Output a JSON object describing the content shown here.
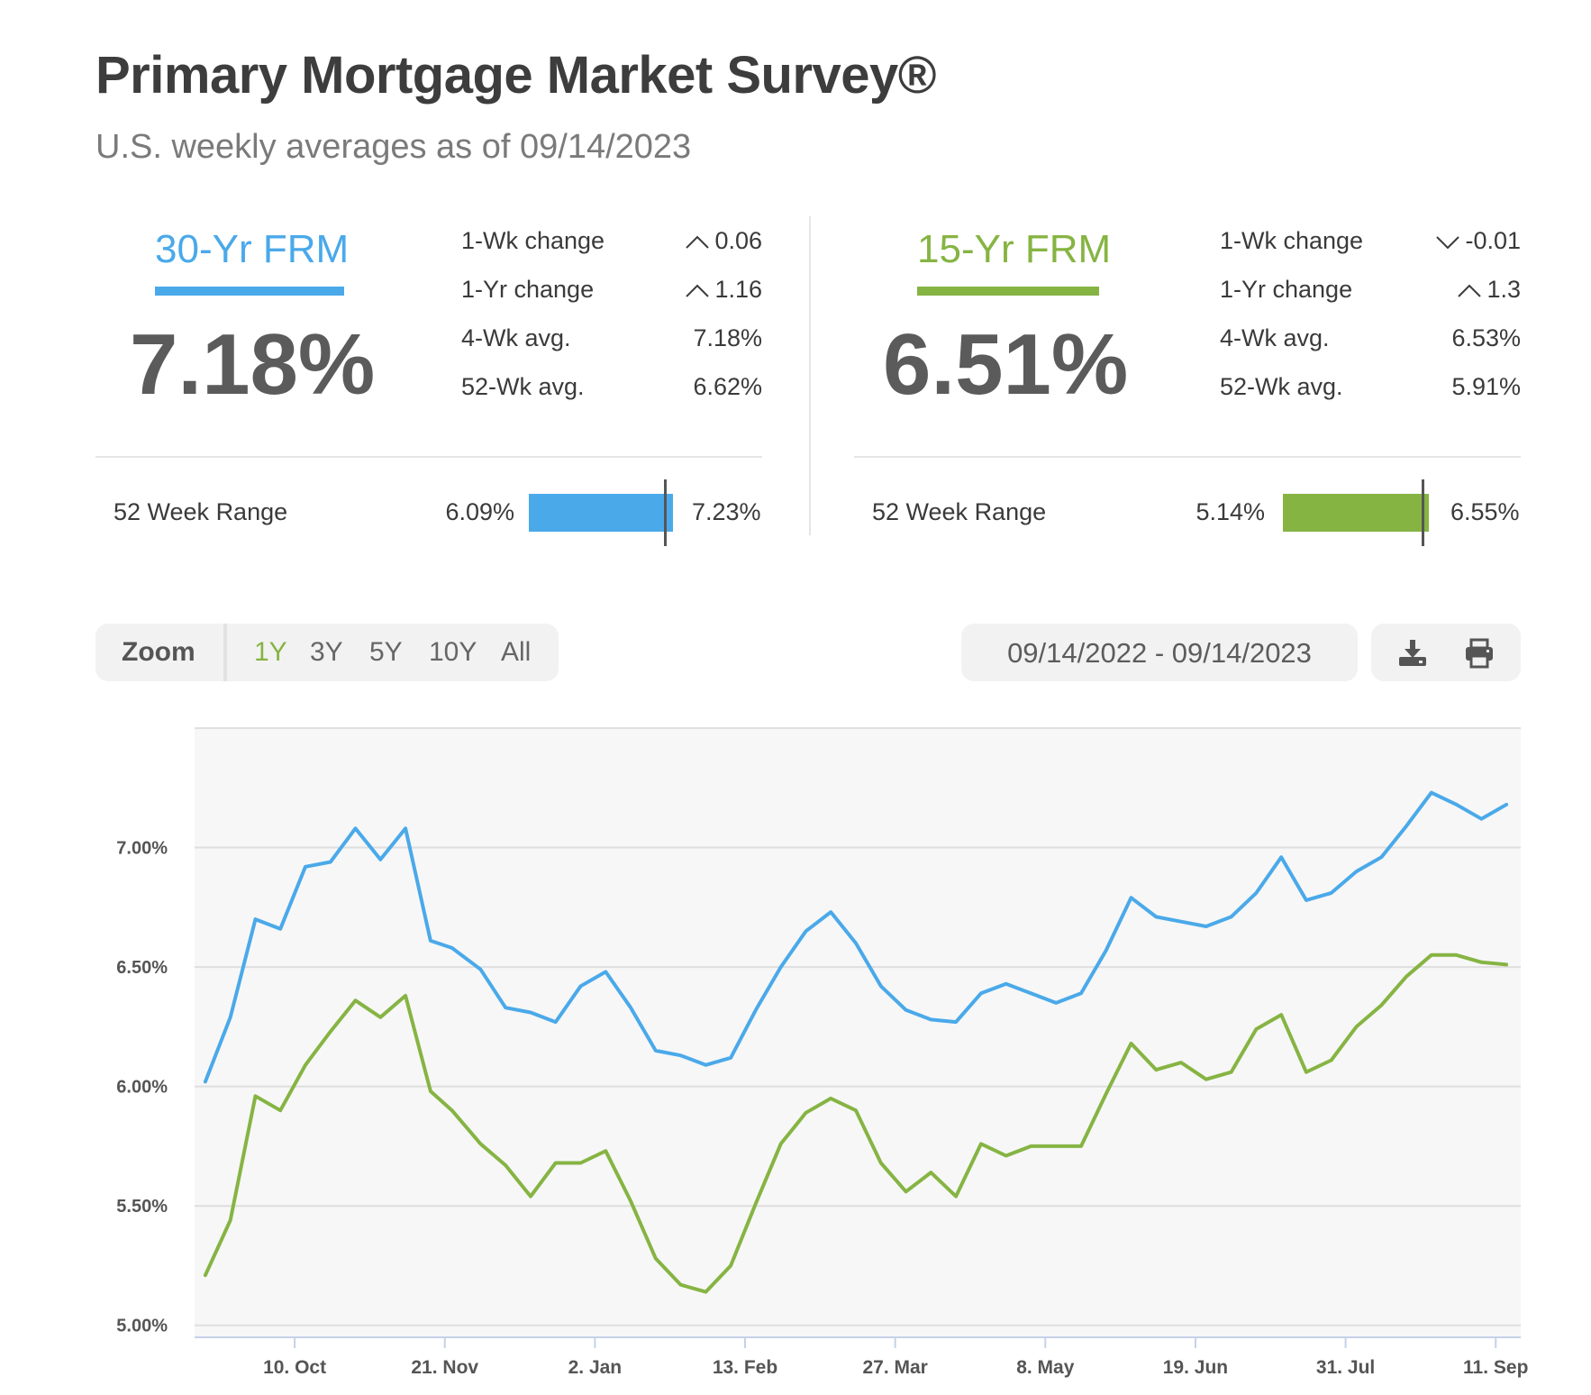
{
  "header": {
    "title": "Primary Mortgage Market Survey®",
    "subtitle": "U.S. weekly averages as of 09/14/2023"
  },
  "rates": [
    {
      "name": "30-Yr FRM",
      "color": "#4aa9e9",
      "value": "7.18%",
      "stats": [
        {
          "label": "1-Wk change",
          "value": "0.06",
          "arrow": "up"
        },
        {
          "label": "1-Yr change",
          "value": "1.16",
          "arrow": "up"
        },
        {
          "label": "4-Wk avg.",
          "value": "7.18%"
        },
        {
          "label": "52-Wk avg.",
          "value": "6.62%"
        }
      ],
      "range_label": "52 Week Range",
      "range_min": "6.09%",
      "range_max": "7.23%",
      "range_current_fraction": 0.96
    },
    {
      "name": "15-Yr FRM",
      "color": "#86b443",
      "value": "6.51%",
      "stats": [
        {
          "label": "1-Wk change",
          "value": "-0.01",
          "arrow": "down"
        },
        {
          "label": "1-Yr change",
          "value": "1.3",
          "arrow": "up"
        },
        {
          "label": "4-Wk avg.",
          "value": "6.53%"
        },
        {
          "label": "52-Wk avg.",
          "value": "5.91%"
        }
      ],
      "range_label": "52 Week Range",
      "range_min": "5.14%",
      "range_max": "6.55%",
      "range_current_fraction": 0.97
    }
  ],
  "toolbar": {
    "zoom_label": "Zoom",
    "zoom_options": [
      "1Y",
      "3Y",
      "5Y",
      "10Y",
      "All"
    ],
    "zoom_selected": "1Y",
    "zoom_selected_color": "#86b443",
    "date_range": "09/14/2022 - 09/14/2023",
    "download_icon": "download-icon",
    "print_icon": "print-icon"
  },
  "chart_data": {
    "type": "line",
    "title": "",
    "xlabel": "",
    "ylabel": "",
    "ylim": [
      4.95,
      7.5
    ],
    "y_ticks": [
      "5.00%",
      "5.50%",
      "6.00%",
      "6.50%",
      "7.00%"
    ],
    "y_tick_values": [
      5.0,
      5.5,
      6.0,
      6.5,
      7.0
    ],
    "x_tick_labels": [
      "10. Oct",
      "21. Nov",
      "2. Jan",
      "13. Feb",
      "27. Mar",
      "8. May",
      "19. Jun",
      "31. Jul",
      "11. Sep"
    ],
    "x_tick_dates": [
      "2022-10-10",
      "2022-11-21",
      "2023-01-02",
      "2023-02-13",
      "2023-03-27",
      "2023-05-08",
      "2023-06-19",
      "2023-07-31",
      "2023-09-11"
    ],
    "x_range": [
      "2022-09-12",
      "2023-09-18"
    ],
    "grid": true,
    "x": [
      "2022-09-15",
      "2022-09-22",
      "2022-09-29",
      "2022-10-06",
      "2022-10-13",
      "2022-10-20",
      "2022-10-27",
      "2022-11-03",
      "2022-11-10",
      "2022-11-17",
      "2022-11-23",
      "2022-12-01",
      "2022-12-08",
      "2022-12-15",
      "2022-12-22",
      "2022-12-29",
      "2023-01-05",
      "2023-01-12",
      "2023-01-19",
      "2023-01-26",
      "2023-02-02",
      "2023-02-09",
      "2023-02-16",
      "2023-02-23",
      "2023-03-02",
      "2023-03-09",
      "2023-03-16",
      "2023-03-23",
      "2023-03-30",
      "2023-04-06",
      "2023-04-13",
      "2023-04-20",
      "2023-04-27",
      "2023-05-04",
      "2023-05-11",
      "2023-05-18",
      "2023-05-25",
      "2023-06-01",
      "2023-06-08",
      "2023-06-15",
      "2023-06-22",
      "2023-06-29",
      "2023-07-06",
      "2023-07-13",
      "2023-07-20",
      "2023-07-27",
      "2023-08-03",
      "2023-08-10",
      "2023-08-17",
      "2023-08-24",
      "2023-08-31",
      "2023-09-07",
      "2023-09-14"
    ],
    "series": [
      {
        "name": "30-Yr FRM",
        "color": "#4aa9e9",
        "values": [
          6.02,
          6.29,
          6.7,
          6.66,
          6.92,
          6.94,
          7.08,
          6.95,
          7.08,
          6.61,
          6.58,
          6.49,
          6.33,
          6.31,
          6.27,
          6.42,
          6.48,
          6.33,
          6.15,
          6.13,
          6.09,
          6.12,
          6.32,
          6.5,
          6.65,
          6.73,
          6.6,
          6.42,
          6.32,
          6.28,
          6.27,
          6.39,
          6.43,
          6.39,
          6.35,
          6.39,
          6.57,
          6.79,
          6.71,
          6.69,
          6.67,
          6.71,
          6.81,
          6.96,
          6.78,
          6.81,
          6.9,
          6.96,
          7.09,
          7.23,
          7.18,
          7.12,
          7.18
        ]
      },
      {
        "name": "15-Yr FRM",
        "color": "#86b443",
        "values": [
          5.21,
          5.44,
          5.96,
          5.9,
          6.09,
          6.23,
          6.36,
          6.29,
          6.38,
          5.98,
          5.9,
          5.76,
          5.67,
          5.54,
          5.68,
          5.68,
          5.73,
          5.52,
          5.28,
          5.17,
          5.14,
          5.25,
          5.51,
          5.76,
          5.89,
          5.95,
          5.9,
          5.68,
          5.56,
          5.64,
          5.54,
          5.76,
          5.71,
          5.75,
          5.75,
          5.75,
          5.97,
          6.18,
          6.07,
          6.1,
          6.03,
          6.06,
          6.24,
          6.3,
          6.06,
          6.11,
          6.25,
          6.34,
          6.46,
          6.55,
          6.55,
          6.52,
          6.51
        ]
      }
    ]
  }
}
